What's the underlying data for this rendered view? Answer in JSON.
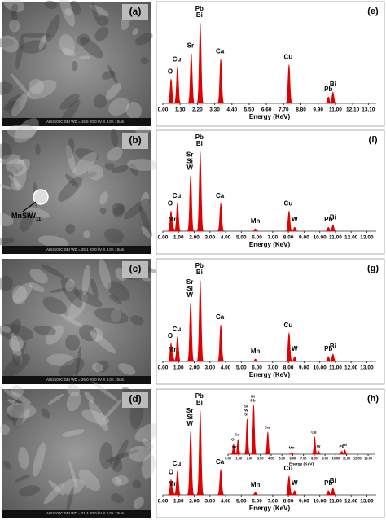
{
  "images": [
    {
      "label": "(a)",
      "info": "AIS2100C  SEI   WD = 15.5   20.0 kV  X 4.0K   10um"
    },
    {
      "label": "(b)",
      "info": "AIS2100C  SEI   WD = 25.1   20.0 kV  X 4.0K   10um",
      "annotation": {
        "text": "MnSiW",
        "subscript": "11"
      }
    },
    {
      "label": "(c)",
      "info": "AIS2100C  SEI   WD = 25.0   20.0 kV  X 4.0K   10um"
    },
    {
      "label": "(d)",
      "info": "AIS2100C  SEI   WD = 21.4   20.0 kV  X 4.0K   10um"
    }
  ],
  "chart_data": [
    {
      "type": "spectrum",
      "label": "(e)",
      "xlabel": "Energy (KeV)",
      "color": "#e00000",
      "xlim": [
        0,
        13.6
      ],
      "ylim": [
        0,
        100
      ],
      "xticks": [
        {
          "value": 0,
          "label": "0.00"
        },
        {
          "value": 1.1,
          "label": "1.10"
        },
        {
          "value": 2.2,
          "label": "2.20"
        },
        {
          "value": 3.3,
          "label": "3.30"
        },
        {
          "value": 4.4,
          "label": "4.40"
        },
        {
          "value": 5.5,
          "label": "5.50"
        },
        {
          "value": 6.6,
          "label": "6.60"
        },
        {
          "value": 7.7,
          "label": "7.70"
        },
        {
          "value": 8.8,
          "label": "8.80"
        },
        {
          "value": 9.9,
          "label": "9.90"
        },
        {
          "value": 11,
          "label": "11.00"
        },
        {
          "value": 12.1,
          "label": "12.10"
        },
        {
          "value": 13.1,
          "label": "13.10"
        }
      ],
      "peaks": {
        "x": [
          0.52,
          0.93,
          1.81,
          2.38,
          3.69,
          8.04,
          10.55,
          10.84
        ],
        "values": [
          30,
          45,
          62,
          100,
          55,
          48,
          8,
          14
        ]
      },
      "peak_labels": [
        [
          "O"
        ],
        [
          "Cu"
        ],
        [
          "Sr"
        ],
        [
          "Pb",
          "Bi"
        ],
        [
          "Ca"
        ],
        [
          "Cu"
        ],
        [
          "Pb"
        ],
        [
          "Bi"
        ]
      ]
    },
    {
      "type": "spectrum",
      "label": "(f)",
      "xlabel": "Energy (KeV)",
      "color": "#e00000",
      "xlim": [
        0,
        13.6
      ],
      "ylim": [
        0,
        100
      ],
      "xticks": [
        {
          "value": 0,
          "label": "0.00"
        },
        {
          "value": 1,
          "label": "1.00"
        },
        {
          "value": 2,
          "label": "2.00"
        },
        {
          "value": 3,
          "label": "3.00"
        },
        {
          "value": 4,
          "label": "4.00"
        },
        {
          "value": 5,
          "label": "5.00"
        },
        {
          "value": 6,
          "label": "6.00"
        },
        {
          "value": 7,
          "label": "7.00"
        },
        {
          "value": 8,
          "label": "8.00"
        },
        {
          "value": 9,
          "label": "9.00"
        },
        {
          "value": 10,
          "label": "10.00"
        },
        {
          "value": 11,
          "label": "11.00"
        },
        {
          "value": 12,
          "label": "12.00"
        },
        {
          "value": 13,
          "label": "13.00"
        }
      ],
      "peaks": {
        "x": [
          0.52,
          0.64,
          0.93,
          1.77,
          2.38,
          3.69,
          5.9,
          8.04,
          8.4,
          10.55,
          10.84
        ],
        "values": [
          25,
          5,
          35,
          70,
          100,
          35,
          3,
          25,
          5,
          5,
          8
        ]
      },
      "peak_labels": [
        [
          "O"
        ],
        [
          "Mn"
        ],
        [
          "Cu"
        ],
        [
          "Sr",
          "Si",
          "W"
        ],
        [
          "Pb",
          "Bi"
        ],
        [
          "Ca"
        ],
        [
          "Mn"
        ],
        [
          "Cu"
        ],
        [
          "W"
        ],
        [
          "Pb"
        ],
        [
          "Bi"
        ]
      ]
    },
    {
      "type": "spectrum",
      "label": "(g)",
      "xlabel": "Energy (KeV)",
      "color": "#e00000",
      "xlim": [
        0,
        13.6
      ],
      "ylim": [
        0,
        100
      ],
      "xticks": [
        {
          "value": 0,
          "label": "0.00"
        },
        {
          "value": 1,
          "label": "1.00"
        },
        {
          "value": 2,
          "label": "2.00"
        },
        {
          "value": 3,
          "label": "3.00"
        },
        {
          "value": 4,
          "label": "4.00"
        },
        {
          "value": 5,
          "label": "5.00"
        },
        {
          "value": 6,
          "label": "6.00"
        },
        {
          "value": 7,
          "label": "7.00"
        },
        {
          "value": 8,
          "label": "8.00"
        },
        {
          "value": 9,
          "label": "9.00"
        },
        {
          "value": 10,
          "label": "10.00"
        },
        {
          "value": 11,
          "label": "11.00"
        },
        {
          "value": 12,
          "label": "12.00"
        },
        {
          "value": 13,
          "label": "13.00"
        }
      ],
      "peaks": {
        "x": [
          0.52,
          0.64,
          0.93,
          1.77,
          2.38,
          3.69,
          5.9,
          8.04,
          8.4,
          10.55,
          10.84
        ],
        "values": [
          22,
          5,
          30,
          72,
          100,
          45,
          3,
          35,
          6,
          6,
          9
        ]
      },
      "peak_labels": [
        [
          "O"
        ],
        [
          "Mn"
        ],
        [
          "Cu"
        ],
        [
          "Sr",
          "Si",
          "W"
        ],
        [
          "Pb",
          "Bi"
        ],
        [
          "Ca"
        ],
        [
          "Mn"
        ],
        [
          "Cu"
        ],
        [
          "W"
        ],
        [
          "Pb"
        ],
        [
          "Bi"
        ]
      ]
    },
    {
      "type": "spectrum",
      "label": "(h)",
      "xlabel": "Energy (KeV)",
      "color": "#e00000",
      "xlim": [
        0,
        13.6
      ],
      "ylim": [
        0,
        100
      ],
      "xticks": [
        {
          "value": 0,
          "label": "0.00"
        },
        {
          "value": 1,
          "label": "1.00"
        },
        {
          "value": 2,
          "label": "2.00"
        },
        {
          "value": 3,
          "label": "3.00"
        },
        {
          "value": 4,
          "label": "4.00"
        },
        {
          "value": 5,
          "label": "5.00"
        },
        {
          "value": 6,
          "label": "6.00"
        },
        {
          "value": 7,
          "label": "7.00"
        },
        {
          "value": 8,
          "label": "8.00"
        },
        {
          "value": 9,
          "label": "9.00"
        },
        {
          "value": 10,
          "label": "10.00"
        },
        {
          "value": 11,
          "label": "11.00"
        },
        {
          "value": 12,
          "label": "12.00"
        },
        {
          "value": 13,
          "label": "13.00"
        }
      ],
      "peaks": {
        "x": [
          0.52,
          0.64,
          0.93,
          1.77,
          2.38,
          3.69,
          5.9,
          8.04,
          8.4,
          10.55,
          10.84
        ],
        "values": [
          18,
          4,
          28,
          75,
          100,
          30,
          3,
          22,
          5,
          5,
          8
        ]
      },
      "peak_labels": [
        [
          "O"
        ],
        [
          "Mn"
        ],
        [
          "Cu"
        ],
        [
          "Sr",
          "Si",
          "W"
        ],
        [
          "Pb",
          "Bi"
        ],
        [
          "Ca"
        ],
        [
          "Mn"
        ],
        [
          "Cu"
        ],
        [
          "W"
        ],
        [
          "Pb"
        ],
        [
          "Bi"
        ]
      ]
    },
    {
      "type": "spectrum",
      "xlabel": "Energy (KeV)",
      "color": "#e00000",
      "xlim": [
        0,
        13.6
      ],
      "ylim": [
        0,
        100
      ],
      "xticks": [
        {
          "value": 0,
          "label": "0.00"
        },
        {
          "value": 1,
          "label": "1.00"
        },
        {
          "value": 2,
          "label": "2.00"
        },
        {
          "value": 3,
          "label": "3.00"
        },
        {
          "value": 4,
          "label": "4.00"
        },
        {
          "value": 5,
          "label": "5.00"
        },
        {
          "value": 6,
          "label": "6.00"
        },
        {
          "value": 7,
          "label": "7.00"
        },
        {
          "value": 8,
          "label": "8.00"
        },
        {
          "value": 9,
          "label": "9.00"
        },
        {
          "value": 10,
          "label": "10.00"
        },
        {
          "value": 11,
          "label": "11.00"
        },
        {
          "value": 12,
          "label": "12.00"
        },
        {
          "value": 13,
          "label": "13.00"
        }
      ],
      "peaks": {
        "x": [
          0.52,
          0.64,
          0.93,
          1.77,
          2.38,
          3.69,
          5.9,
          8.04,
          8.4,
          10.55,
          10.84
        ],
        "values": [
          20,
          5,
          30,
          72,
          100,
          45,
          3,
          35,
          6,
          6,
          9
        ]
      },
      "peak_labels": [
        [
          "O"
        ],
        [
          "Mn"
        ],
        [
          "Cu"
        ],
        [
          "Sr",
          "W",
          "Si"
        ],
        [
          "Bi",
          "Pb"
        ],
        [
          "Ca"
        ],
        [
          "Mn"
        ],
        [
          "Cu"
        ],
        [
          "W"
        ],
        [
          "Pb"
        ],
        [
          "Bi"
        ]
      ]
    }
  ]
}
